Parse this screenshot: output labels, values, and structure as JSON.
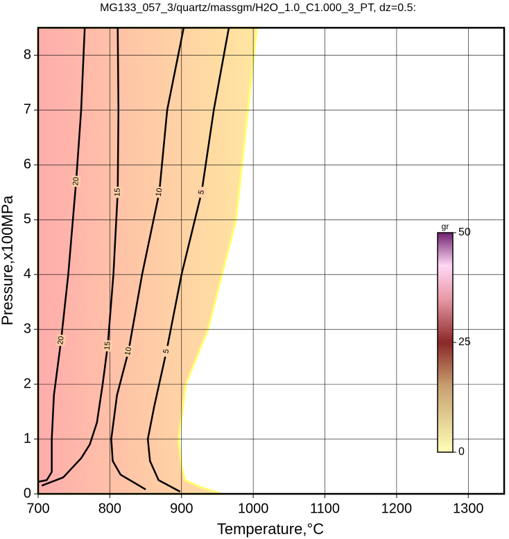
{
  "chart_data": {
    "type": "contour",
    "title": "MG133_057_3/quartz/massgm/H2O_1.0_C1.000_3_PT, dz=0.5:",
    "x_label": "Temperature,°C",
    "y_label": "Pressure,x100MPa",
    "xlim": [
      700,
      1350
    ],
    "ylim": [
      0,
      8.5
    ],
    "xticks": [
      700,
      800,
      900,
      1000,
      1100,
      1200,
      1300
    ],
    "yticks": [
      0,
      1,
      2,
      3,
      4,
      5,
      6,
      7,
      8
    ],
    "grid": true,
    "extent": {
      "x": [
        700,
        1005,
        976,
        937,
        906,
        896,
        900,
        905,
        927,
        956,
        700
      ],
      "y": [
        8.5,
        8.5,
        5,
        3,
        2,
        1,
        0.5,
        0.25,
        0.12,
        0,
        0
      ]
    },
    "contours": [
      {
        "level": 20,
        "x": [
          765,
          760,
          753,
          742,
          732,
          722,
          719,
          719,
          712,
          700
        ],
        "y": [
          8.5,
          7,
          5.7,
          4,
          2.8,
          1.8,
          1,
          0.4,
          0.25,
          0.22
        ]
      },
      {
        "level": 15,
        "x": [
          811,
          812,
          811,
          805,
          797,
          790,
          782,
          772,
          760,
          735,
          705
        ],
        "y": [
          8.5,
          7,
          5.5,
          4,
          2.7,
          2,
          1.3,
          0.9,
          0.65,
          0.3,
          0.15
        ]
      },
      {
        "level": 10,
        "x": [
          903,
          880,
          869,
          845,
          826,
          810,
          802,
          804,
          815,
          850
        ],
        "y": [
          8.5,
          7,
          5.5,
          4,
          2.6,
          1.8,
          1,
          0.6,
          0.35,
          0.08
        ]
      },
      {
        "level": 5,
        "x": [
          966,
          945,
          928,
          900,
          879,
          862,
          853,
          856,
          868,
          898
        ],
        "y": [
          8.5,
          7,
          5.5,
          4,
          2.6,
          1.6,
          1,
          0.6,
          0.25,
          0.04
        ]
      }
    ],
    "colorbar": {
      "label": "gr",
      "lim": [
        0,
        50
      ],
      "ticks": [
        0,
        25,
        50
      ]
    }
  }
}
